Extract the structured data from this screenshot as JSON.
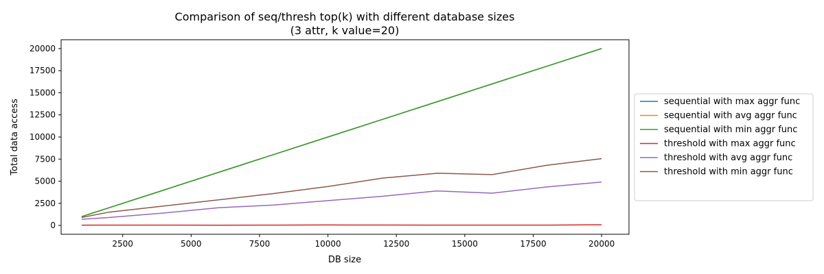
{
  "chart_data": {
    "type": "line",
    "title": "Comparison of seq/thresh top(k) with different database sizes",
    "subtitle": "(3 attr, k value=20)",
    "xlabel": "DB size",
    "ylabel": "Total data access",
    "xlim": [
      250,
      21000
    ],
    "ylim": [
      -1000,
      21000
    ],
    "xticks": [
      2500,
      5000,
      7500,
      10000,
      12500,
      15000,
      17500,
      20000
    ],
    "yticks": [
      0,
      2500,
      5000,
      7500,
      10000,
      12500,
      15000,
      17500,
      20000
    ],
    "grid": false,
    "legend_position": "right-outside",
    "x": [
      1000,
      2000,
      4000,
      6000,
      8000,
      10000,
      12000,
      14000,
      16000,
      18000,
      20000
    ],
    "series": [
      {
        "name": "sequential with max aggr func",
        "color": "#1f77b4",
        "values": [
          1000,
          2000,
          4000,
          6000,
          8000,
          10000,
          12000,
          14000,
          16000,
          18000,
          20000
        ]
      },
      {
        "name": "sequential with avg aggr func",
        "color": "#ff7f0e",
        "values": [
          1000,
          2000,
          4000,
          6000,
          8000,
          10000,
          12000,
          14000,
          16000,
          18000,
          20000
        ]
      },
      {
        "name": "sequential with min aggr func",
        "color": "#2ca02c",
        "values": [
          1000,
          2000,
          4000,
          6000,
          8000,
          10000,
          12000,
          14000,
          16000,
          18000,
          20000
        ]
      },
      {
        "name": "threshold with max aggr func",
        "color": "#d62728",
        "values": [
          30,
          35,
          35,
          30,
          40,
          50,
          45,
          40,
          35,
          40,
          80
        ]
      },
      {
        "name": "threshold with avg aggr func",
        "color": "#9467bd",
        "values": [
          700,
          900,
          1400,
          2000,
          2300,
          2800,
          3300,
          3900,
          3650,
          4350,
          4900
        ]
      },
      {
        "name": "threshold with min aggr func",
        "color": "#8c564b",
        "values": [
          900,
          1500,
          2200,
          2900,
          3600,
          4400,
          5350,
          5900,
          5750,
          6800,
          7550
        ]
      }
    ]
  }
}
